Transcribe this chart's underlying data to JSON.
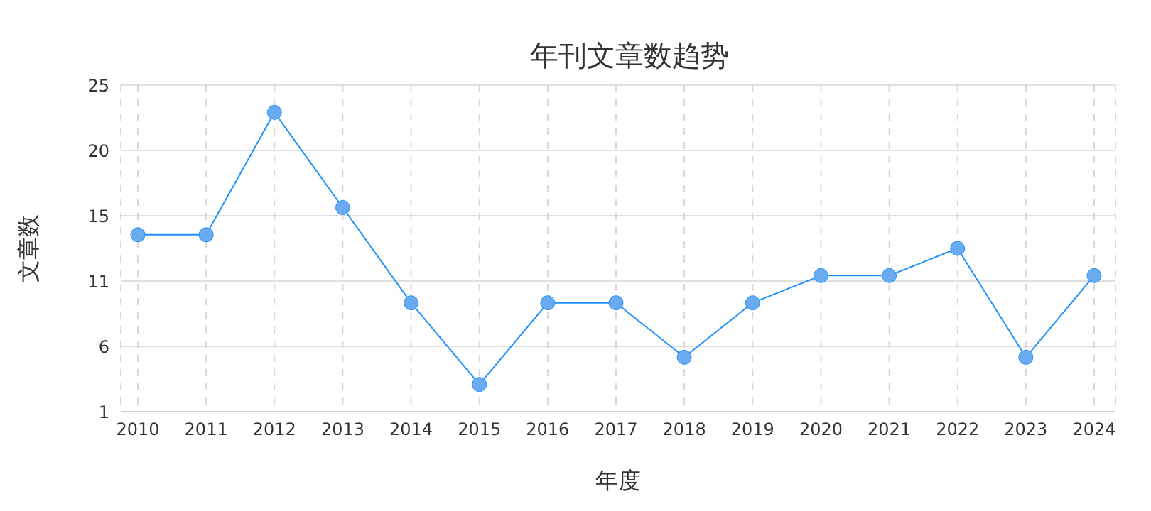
{
  "chart_data": {
    "type": "line",
    "title": "年刊文章数趋势",
    "xlabel": "年度",
    "ylabel": "文章数",
    "categories": [
      "2010",
      "2011",
      "2012",
      "2013",
      "2014",
      "2015",
      "2016",
      "2017",
      "2018",
      "2019",
      "2020",
      "2021",
      "2022",
      "2023",
      "2024"
    ],
    "series": [
      {
        "color": "#1e90ff",
        "values": [
          14,
          14,
          23,
          16,
          9,
          3,
          9,
          9,
          5,
          9,
          11,
          11,
          13,
          5,
          11
        ]
      }
    ],
    "ylim": [
      1,
      25
    ],
    "yticks": [
      {
        "value": 1,
        "label": "1"
      },
      {
        "value": 5.8,
        "label": "6"
      },
      {
        "value": 10.6,
        "label": "11"
      },
      {
        "value": 15.4,
        "label": "15"
      },
      {
        "value": 20.2,
        "label": "20"
      },
      {
        "value": 25,
        "label": "25"
      }
    ],
    "grid": true,
    "legend": false,
    "marker": "circle",
    "line_style": "solid"
  }
}
